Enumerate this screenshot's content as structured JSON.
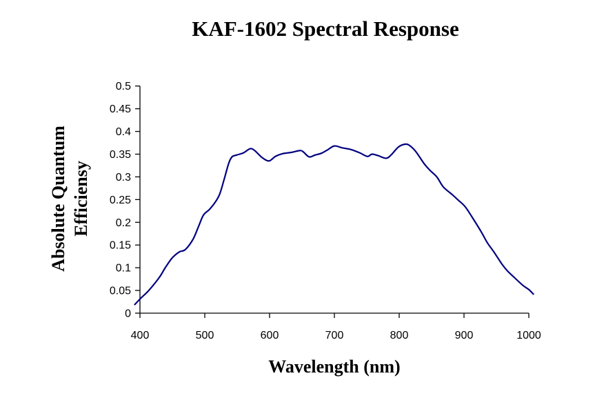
{
  "chart_data": {
    "type": "line",
    "title": "KAF-1602 Spectral Response",
    "xlabel": "Wavelength (nm)",
    "ylabel_lines": [
      "Absolute Quantum",
      "Efficiensy"
    ],
    "xlim": [
      400,
      1000
    ],
    "ylim": [
      0,
      0.5
    ],
    "x_ticks": [
      400,
      500,
      600,
      700,
      800,
      900,
      1000
    ],
    "x_tick_labels": [
      "400",
      "500",
      "600",
      "700",
      "800",
      "900",
      "1000"
    ],
    "y_ticks": [
      0,
      0.05,
      0.1,
      0.15,
      0.2,
      0.25,
      0.3,
      0.35,
      0.4,
      0.45,
      0.5
    ],
    "y_tick_labels": [
      "0",
      "0.05",
      "0.1",
      "0.15",
      "0.2",
      "0.25",
      "0.3",
      "0.35",
      "0.4",
      "0.45",
      "0.5"
    ],
    "grid": false,
    "legend": "none",
    "line_color": "#000080",
    "series": [
      {
        "name": "Absolute Quantum Efficiensy",
        "x": [
          392,
          402,
          413,
          430,
          439,
          450,
          461,
          470,
          482,
          491,
          498,
          507,
          516,
          523,
          530,
          537,
          542,
          549,
          560,
          570,
          577,
          588,
          599,
          609,
          620,
          634,
          647,
          652,
          661,
          670,
          680,
          689,
          700,
          712,
          726,
          739,
          751,
          758,
          767,
          780,
          788,
          799,
          810,
          817,
          826,
          838,
          847,
          858,
          868,
          881,
          891,
          902,
          914,
          927,
          936,
          946,
          959,
          967,
          978,
          991,
          1000,
          1007
        ],
        "y": [
          0.019,
          0.034,
          0.049,
          0.079,
          0.1,
          0.122,
          0.135,
          0.14,
          0.163,
          0.193,
          0.216,
          0.228,
          0.244,
          0.262,
          0.295,
          0.33,
          0.344,
          0.348,
          0.353,
          0.362,
          0.358,
          0.343,
          0.335,
          0.345,
          0.351,
          0.354,
          0.358,
          0.355,
          0.344,
          0.348,
          0.352,
          0.359,
          0.368,
          0.364,
          0.36,
          0.353,
          0.345,
          0.35,
          0.347,
          0.341,
          0.349,
          0.366,
          0.372,
          0.368,
          0.355,
          0.33,
          0.315,
          0.3,
          0.278,
          0.262,
          0.249,
          0.234,
          0.208,
          0.178,
          0.155,
          0.135,
          0.107,
          0.093,
          0.078,
          0.061,
          0.052,
          0.042
        ]
      }
    ]
  }
}
